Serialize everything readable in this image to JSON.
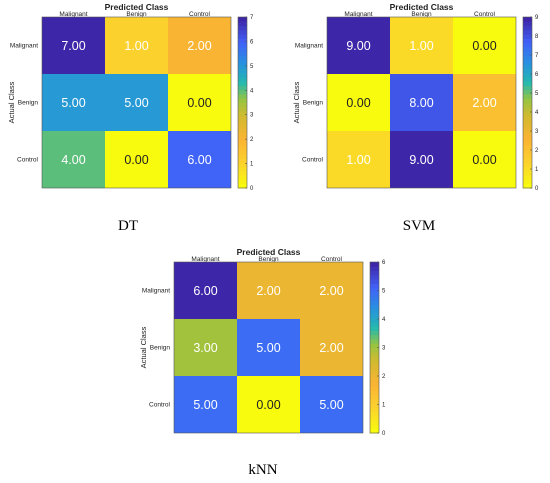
{
  "chart_data": [
    {
      "type": "heatmap",
      "caption": "DT",
      "title": "Predicted Class",
      "ylabel": "Actual Class",
      "x_categories": [
        "Malignant",
        "Benign",
        "Control"
      ],
      "y_categories": [
        "Malignant",
        "Benign",
        "Control"
      ],
      "values": [
        [
          7.0,
          1.0,
          2.0
        ],
        [
          5.0,
          5.0,
          0.0
        ],
        [
          4.0,
          0.0,
          6.0
        ]
      ],
      "colorbar": {
        "range": [
          0,
          7
        ],
        "ticks": [
          "0",
          "1",
          "2",
          "3",
          "4",
          "5",
          "6",
          "7"
        ]
      }
    },
    {
      "type": "heatmap",
      "caption": "SVM",
      "title": "Predicted Class",
      "ylabel": "Actual Class",
      "x_categories": [
        "Malignant",
        "Benign",
        "Control"
      ],
      "y_categories": [
        "Malignant",
        "Benign",
        "Control"
      ],
      "values": [
        [
          9.0,
          1.0,
          0.0
        ],
        [
          0.0,
          8.0,
          2.0
        ],
        [
          1.0,
          9.0,
          0.0
        ]
      ],
      "colorbar": {
        "range": [
          0,
          9
        ],
        "ticks": [
          "0",
          "1",
          "2",
          "3",
          "4",
          "5",
          "6",
          "7",
          "8",
          "9"
        ]
      }
    },
    {
      "type": "heatmap",
      "caption": "kNN",
      "title": "Predicted Class",
      "ylabel": "Actual Class",
      "x_categories": [
        "Malignant",
        "Benign",
        "Control"
      ],
      "y_categories": [
        "Malignant",
        "Benign",
        "Control"
      ],
      "values": [
        [
          6.0,
          2.0,
          2.0
        ],
        [
          3.0,
          5.0,
          2.0
        ],
        [
          5.0,
          0.0,
          5.0
        ]
      ],
      "colorbar": {
        "range": [
          0,
          6
        ],
        "ticks": [
          "0",
          "1",
          "2",
          "3",
          "4",
          "5",
          "6"
        ]
      }
    }
  ],
  "colormap": "parula-reversed",
  "colors": {
    "low": "#f9fb0e",
    "mid": "#18b5c9",
    "high": "#3e26a8",
    "cell_text": "#ffffff",
    "cell_text_dark": "#222222"
  }
}
